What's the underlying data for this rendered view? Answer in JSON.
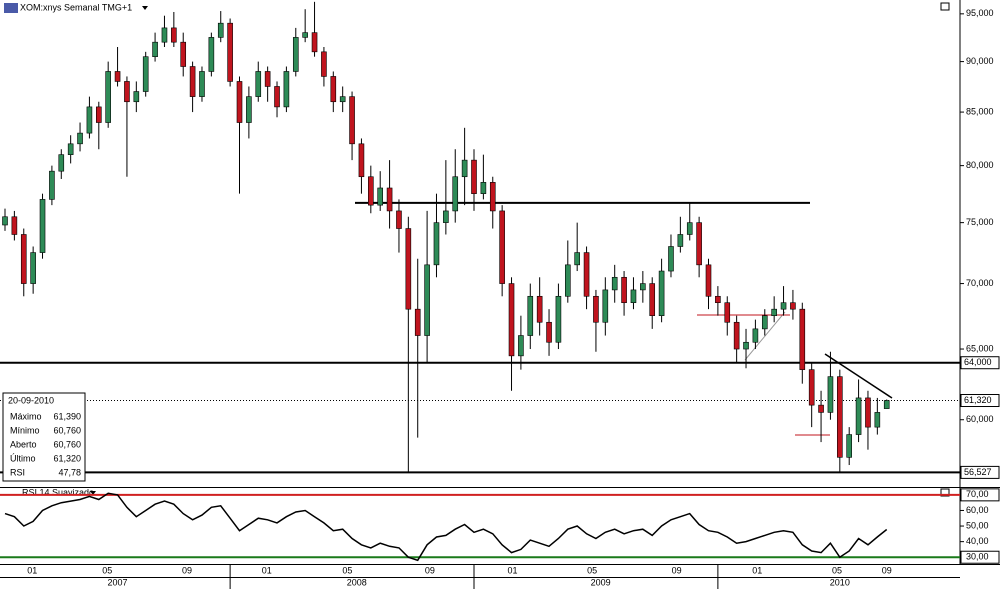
{
  "chart_data": {
    "type": "candlestick",
    "title": "XOM:xnys Semanal TMG+1",
    "log_scale": true,
    "up_color": "#2e8b57",
    "down_color": "#c0141e",
    "ylim": [
      55600,
      96500
    ],
    "yticks": [
      {
        "value": 95000,
        "label": "95,000"
      },
      {
        "value": 90000,
        "label": "90,000"
      },
      {
        "value": 85000,
        "label": "85,000"
      },
      {
        "value": 80000,
        "label": "80,000"
      },
      {
        "value": 75000,
        "label": "75,000"
      },
      {
        "value": 70000,
        "label": "70,000"
      },
      {
        "value": 65000,
        "label": "65,000"
      },
      {
        "value": 60000,
        "label": "60,000"
      }
    ],
    "price_markers": [
      {
        "value": 64000,
        "label": "64,000"
      },
      {
        "value": 61320,
        "label": "61,320"
      },
      {
        "value": 56527,
        "label": "56,527"
      }
    ],
    "support_line": 76700,
    "open": [
      74800,
      75500,
      74000,
      70000,
      72500,
      77000,
      79500,
      81000,
      82000,
      83000,
      85500,
      84000,
      89000,
      88000,
      86000,
      87000,
      90500,
      92000,
      93500,
      92000,
      89500,
      86500,
      89000,
      92500,
      94000,
      88000,
      84000,
      86500,
      89000,
      87500,
      85500,
      89000,
      92500,
      93000,
      91000,
      88500,
      86000,
      86500,
      82000,
      79000,
      76500,
      78000,
      76000,
      74500,
      68000,
      66000,
      71500,
      75000,
      76000,
      79000,
      80500,
      77500,
      78500,
      76000,
      70000,
      64500,
      66000,
      69000,
      67000,
      65500,
      69000,
      71500,
      72500,
      69000,
      67000,
      69500,
      70500,
      68500,
      69500,
      70000,
      67500,
      71000,
      73000,
      74000,
      75000,
      71500,
      69000,
      68500,
      67000,
      65000,
      65500,
      66500,
      67500,
      68000,
      68500,
      68000,
      63500,
      61000,
      60500,
      63000,
      57500,
      59000,
      61500,
      59500,
      60760
    ],
    "high": [
      76200,
      76000,
      74500,
      73000,
      77500,
      80000,
      81500,
      82800,
      84000,
      86500,
      86000,
      90000,
      91500,
      88500,
      88000,
      91000,
      93000,
      94800,
      95200,
      93000,
      90000,
      89500,
      93000,
      95300,
      94500,
      88500,
      87500,
      90000,
      89500,
      88000,
      89500,
      93500,
      95500,
      96300,
      91500,
      89000,
      87500,
      87000,
      82500,
      80000,
      79500,
      80500,
      77000,
      75500,
      72000,
      76000,
      77500,
      80500,
      81500,
      83500,
      81500,
      81000,
      79000,
      76500,
      70500,
      67500,
      70000,
      70500,
      68000,
      70000,
      73500,
      75000,
      73000,
      69500,
      70500,
      71500,
      71000,
      70500,
      71000,
      70500,
      72000,
      74000,
      75500,
      76700,
      75500,
      72000,
      69800,
      69000,
      67500,
      66500,
      67200,
      68000,
      69000,
      69800,
      69500,
      68500,
      64000,
      62000,
      64800,
      63500,
      59500,
      62800,
      62000,
      61500,
      61390
    ],
    "low": [
      74300,
      73500,
      69000,
      69200,
      72000,
      76500,
      78800,
      80200,
      81300,
      82500,
      81500,
      83500,
      87500,
      79000,
      85000,
      86500,
      90000,
      91500,
      91500,
      88500,
      85000,
      86000,
      88500,
      92000,
      87500,
      77500,
      82500,
      86000,
      86000,
      84500,
      85000,
      88500,
      92000,
      90500,
      87500,
      85000,
      85000,
      80500,
      77500,
      75800,
      76000,
      74500,
      72500,
      56527,
      58800,
      64000,
      70500,
      74000,
      75000,
      76500,
      76000,
      77000,
      74500,
      69000,
      62000,
      63500,
      65000,
      66000,
      64500,
      65000,
      68500,
      71000,
      68000,
      64800,
      66000,
      68500,
      67500,
      68000,
      68500,
      66500,
      67000,
      70500,
      72500,
      73500,
      70500,
      68000,
      67500,
      66000,
      64000,
      63600,
      65000,
      66000,
      67000,
      67500,
      67200,
      62500,
      59500,
      58500,
      60000,
      56500,
      57000,
      58500,
      58000,
      59000,
      60760
    ],
    "close": [
      75500,
      74000,
      70000,
      72500,
      77000,
      79500,
      81000,
      82000,
      83000,
      85500,
      84000,
      89000,
      88000,
      86000,
      87000,
      90500,
      92000,
      93500,
      92000,
      89500,
      86500,
      89000,
      92500,
      94000,
      88000,
      84000,
      86500,
      89000,
      87500,
      85500,
      89000,
      92500,
      93000,
      91000,
      88500,
      86000,
      86500,
      82000,
      79000,
      76500,
      78000,
      76000,
      74500,
      68000,
      66000,
      71500,
      75000,
      76000,
      79000,
      80500,
      77500,
      78500,
      76000,
      70000,
      64500,
      66000,
      69000,
      67000,
      65500,
      69000,
      71500,
      72500,
      69000,
      67000,
      69500,
      70500,
      68500,
      69500,
      70000,
      67500,
      71000,
      73000,
      74000,
      75000,
      71500,
      69000,
      68500,
      67000,
      65000,
      65500,
      66500,
      67500,
      68000,
      68500,
      68000,
      63500,
      61000,
      60500,
      63000,
      57500,
      59000,
      61500,
      59500,
      60500,
      61320
    ],
    "xticks": [
      {
        "value": 2.9,
        "label": "01"
      },
      {
        "value": 10.9,
        "label": "05"
      },
      {
        "value": 19.4,
        "label": "09"
      },
      {
        "value": 27.9,
        "label": "01"
      },
      {
        "value": 36.5,
        "label": "05"
      },
      {
        "value": 45.3,
        "label": "09"
      },
      {
        "value": 54.1,
        "label": "01"
      },
      {
        "value": 62.6,
        "label": "05"
      },
      {
        "value": 71.6,
        "label": "09"
      },
      {
        "value": 80.2,
        "label": "01"
      },
      {
        "value": 88.7,
        "label": "05"
      },
      {
        "value": 94.0,
        "label": "09"
      }
    ],
    "years": [
      {
        "value": 12,
        "label": "2007"
      },
      {
        "value": 37.5,
        "label": "2008"
      },
      {
        "value": 63.5,
        "label": "2009"
      },
      {
        "value": 89,
        "label": "2010"
      }
    ],
    "year_breaks": [
      24,
      50,
      76
    ],
    "info_box": {
      "date": "20-09-2010",
      "rows": [
        {
          "label": "Máximo",
          "value": "61,390"
        },
        {
          "label": "Mínimo",
          "value": "60,760"
        },
        {
          "label": "Aberto",
          "value": "60,760"
        },
        {
          "label": "Último",
          "value": "61,320"
        },
        {
          "label": "RSI",
          "value": "47,78"
        }
      ]
    },
    "indicator": {
      "type": "line",
      "name": "RSI 14 Suavizado",
      "color": "#000000",
      "ylim": [
        26.3,
        74.4
      ],
      "yticks": [
        {
          "value": 70,
          "label": "70,00"
        },
        {
          "value": 60,
          "label": "60,00"
        },
        {
          "value": 50,
          "label": "50,00"
        },
        {
          "value": 40,
          "label": "40,00"
        },
        {
          "value": 30,
          "label": "30,00"
        }
      ],
      "levels": [
        {
          "value": 70,
          "color": "#d02020"
        },
        {
          "value": 30,
          "color": "#1a7a1a"
        }
      ],
      "values": [
        58,
        56,
        50,
        53,
        60,
        63,
        65,
        66,
        67,
        69,
        67,
        71,
        70,
        62,
        56,
        60,
        64,
        66,
        64,
        58,
        54,
        57,
        62,
        63,
        55,
        47,
        51,
        55,
        54,
        52,
        56,
        59,
        60,
        56,
        52,
        47,
        48,
        42,
        38,
        36,
        39,
        37,
        36,
        30,
        28,
        38,
        43,
        44,
        48,
        51,
        46,
        48,
        45,
        38,
        33,
        35,
        41,
        39,
        37,
        42,
        48,
        50,
        45,
        42,
        46,
        48,
        45,
        47,
        48,
        44,
        50,
        54,
        56,
        58,
        51,
        47,
        46,
        43,
        39,
        40,
        42,
        44,
        46,
        47,
        46,
        38,
        34,
        33,
        39,
        30,
        34,
        42,
        38,
        43,
        47.78
      ]
    }
  }
}
